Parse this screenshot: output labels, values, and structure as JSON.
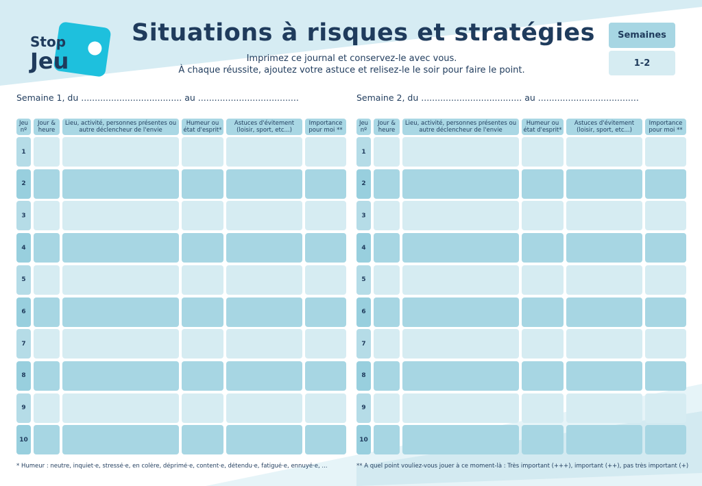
{
  "logo": {
    "line1": "Stop",
    "line2": "Jeu"
  },
  "header": {
    "title": "Situations à risques et stratégies",
    "subtitle": [
      "Imprimez ce journal et conservez-le avec vous.",
      "À chaque réussite, ajoutez votre astuce et relisez-le le soir pour faire le point."
    ]
  },
  "badge": {
    "label": "Semaines",
    "value": "1-2"
  },
  "table": {
    "columns": [
      "Jeu nº",
      "Jour & heure",
      "Lieu, activité, personnes présentes ou autre déclencheur de l'envie",
      "Humeur ou état d'esprit*",
      "Astuces d'évitement (loisir, sport, etc...)",
      "Importance pour moi **"
    ],
    "rows": [
      1,
      2,
      3,
      4,
      5,
      6,
      7,
      8,
      9,
      10
    ]
  },
  "weeks": [
    {
      "heading": "Semaine 1, du ..................................... au .....................................",
      "footnote": "* Humeur : neutre, inquiet·e, stressé·e, en colère, déprimé·e, content·e, détendu·e, fatigué·e, ennuyé·e, ..."
    },
    {
      "heading": "Semaine 2, du ..................................... au .....................................",
      "footnote": "** À quel point vouliez-vous jouer à ce moment-là : Très important (+++), important (++), pas très important (+)"
    }
  ]
}
